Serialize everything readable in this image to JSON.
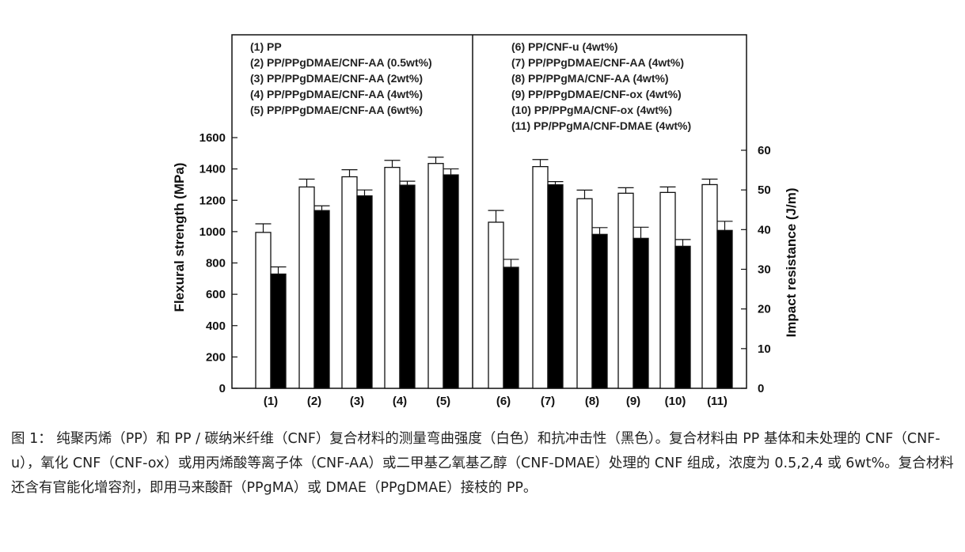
{
  "chart_data": {
    "type": "bar",
    "categories": [
      "(1)",
      "(2)",
      "(3)",
      "(4)",
      "(5)",
      "(6)",
      "(7)",
      "(8)",
      "(9)",
      "(10)",
      "(11)"
    ],
    "series": [
      {
        "axis": "left",
        "color": "#ffffff",
        "values": [
          995,
          1285,
          1350,
          1410,
          1435,
          1060,
          1415,
          1210,
          1245,
          1250,
          1300
        ],
        "errors": [
          55,
          50,
          45,
          45,
          40,
          75,
          45,
          55,
          35,
          35,
          35
        ]
      },
      {
        "axis": "right",
        "color": "#000000",
        "values": [
          28.8,
          44.8,
          48.5,
          51.2,
          53.8,
          30.5,
          51.3,
          38.8,
          37.8,
          35.8,
          39.8
        ],
        "errors": [
          1.8,
          1.2,
          1.5,
          1.0,
          1.5,
          2.0,
          0.8,
          1.7,
          2.8,
          1.7,
          2.3
        ]
      }
    ],
    "ylabel": "Flexural strength (MPa)",
    "y2label": "Impact resistance (J/m)",
    "ylim": [
      0,
      1600
    ],
    "yticks": [
      0,
      200,
      400,
      600,
      800,
      1000,
      1200,
      1400,
      1600
    ],
    "y2lim": [
      0,
      60
    ],
    "y2ticks": [
      0,
      10,
      20,
      30,
      40,
      50,
      60
    ],
    "legend_left": [
      "(1) PP",
      "(2) PP/PPgDMAE/CNF-AA (0.5wt%)",
      "(3) PP/PPgDMAE/CNF-AA (2wt%)",
      "(4) PP/PPgDMAE/CNF-AA (4wt%)",
      "(5) PP/PPgDMAE/CNF-AA (6wt%)"
    ],
    "legend_right": [
      "(6) PP/CNF-u (4wt%)",
      "(7) PP/PPgDMAE/CNF-AA (4wt%)",
      "(8) PP/PPgMA/CNF-AA (4wt%)",
      "(9) PP/PPgDMAE/CNF-ox (4wt%)",
      "(10) PP/PPgMA/CNF-ox (4wt%)",
      "(11) PP/PPgMA/CNF-DMAE (4wt%)"
    ]
  },
  "caption": "图 1： 纯聚丙烯（PP）和 PP / 碳纳米纤维（CNF）复合材料的测量弯曲强度（白色）和抗冲击性（黑色）。复合材料由 PP 基体和未处理的 CNF（CNF-u），氧化 CNF（CNF-ox）或用丙烯酸等离子体（CNF-AA）或二甲基乙氧基乙醇（CNF-DMAE）处理的 CNF 组成，浓度为 0.5,2,4 或 6wt%。复合材料还含有官能化增容剂，即用马来酸酐（PPgMA）或 DMAE（PPgDMAE）接枝的 PP。"
}
